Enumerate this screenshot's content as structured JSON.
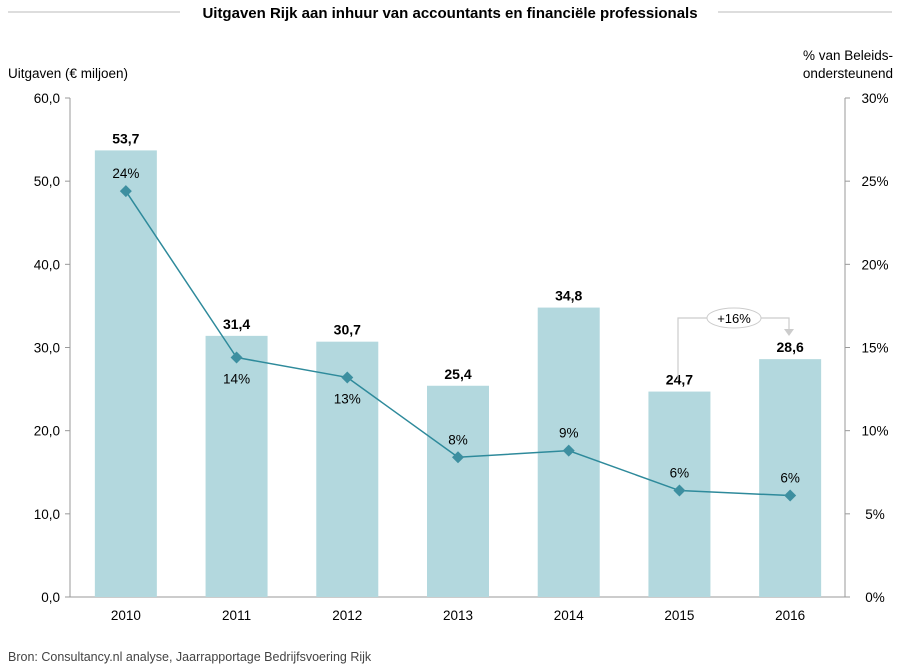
{
  "chart_data": {
    "type": "bar+line",
    "title": "Uitgaven Rijk aan inhuur van accountants en financiële professionals",
    "ylabel": "Uitgaven (€ miljoen)",
    "y2label_line1": "% van Beleids-",
    "y2label_line2": "ondersteunend",
    "categories": [
      "2010",
      "2011",
      "2012",
      "2013",
      "2014",
      "2015",
      "2016"
    ],
    "series": [
      {
        "name": "Uitgaven (€ miljoen)",
        "type": "bar",
        "axis": "left",
        "values": [
          53.7,
          31.4,
          30.7,
          25.4,
          34.8,
          24.7,
          28.6
        ],
        "labels": [
          "53,7",
          "31,4",
          "30,7",
          "25,4",
          "34,8",
          "24,7",
          "28,6"
        ]
      },
      {
        "name": "% van Beleidsondersteunend",
        "type": "line",
        "axis": "right",
        "values": [
          24.4,
          14.4,
          13.2,
          8.4,
          8.8,
          6.4,
          6.1
        ],
        "labels": [
          "24%",
          "14%",
          "13%",
          "8%",
          "9%",
          "6%",
          "6%"
        ]
      }
    ],
    "ylim": [
      0,
      60
    ],
    "y2lim": [
      0,
      30
    ],
    "yticks": [
      "0,0",
      "10,0",
      "20,0",
      "30,0",
      "40,0",
      "50,0",
      "60,0"
    ],
    "y2ticks": [
      "0%",
      "5%",
      "10%",
      "15%",
      "20%",
      "25%",
      "30%"
    ],
    "annotation": "+16%",
    "grid": false
  },
  "source": "Bron: Consultancy.nl analyse, Jaarrapportage Bedrijfsvoering Rijk",
  "colors": {
    "bar": "#b3d8de",
    "line": "#2e8a9b",
    "marker": "#3d8fa0"
  }
}
